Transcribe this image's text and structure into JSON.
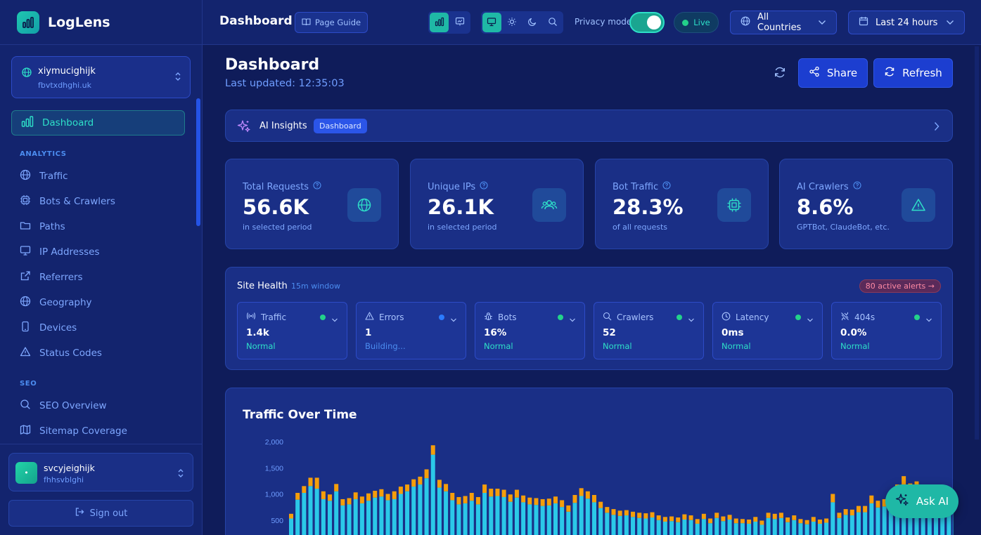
{
  "app": {
    "name": "LogLens"
  },
  "site": {
    "name": "xiymucighijk",
    "domain": "fbvtxdhghi.uk"
  },
  "sidebar": {
    "active_item": "Dashboard",
    "sections": [
      {
        "title": "ANALYTICS",
        "items": [
          "Traffic",
          "Bots & Crawlers",
          "Paths",
          "IP Addresses",
          "Referrers",
          "Geography",
          "Devices",
          "Status Codes"
        ]
      },
      {
        "title": "SEO",
        "items": [
          "SEO Overview",
          "Sitemap Coverage"
        ]
      }
    ]
  },
  "user": {
    "name": "svcyjeighijk",
    "sub": "fhhsvblghi",
    "avatar": "•"
  },
  "signout_label": "Sign out",
  "topbar": {
    "title": "Dashboard",
    "guide_label": "Page Guide",
    "privacy_label": "Privacy mode",
    "privacy_on": true,
    "live_label": "Live",
    "country_label": "All Countries",
    "range_label": "Last 24 hours"
  },
  "page": {
    "title": "Dashboard",
    "updated": "Last updated: 12:35:03",
    "share_label": "Share",
    "refresh_label": "Refresh"
  },
  "ai_insights": {
    "title": "AI Insights",
    "badge": "Dashboard"
  },
  "stats": [
    {
      "label": "Total Requests",
      "value": "56.6K",
      "sub": "in selected period",
      "icon": "globe-icon"
    },
    {
      "label": "Unique IPs",
      "value": "26.1K",
      "sub": "in selected period",
      "icon": "users-icon"
    },
    {
      "label": "Bot Traffic",
      "value": "28.3%",
      "sub": "of all requests",
      "icon": "cpu-icon"
    },
    {
      "label": "AI Crawlers",
      "value": "8.6%",
      "sub": "GPTBot, ClaudeBot, etc.",
      "icon": "warning-icon"
    }
  ],
  "health": {
    "title": "Site Health",
    "window": "15m window",
    "alerts": "80 active alerts →",
    "cards": [
      {
        "label": "Traffic",
        "value": "1.4k",
        "status": "Normal",
        "dot": "#23d28a",
        "icon": "radio-icon"
      },
      {
        "label": "Errors",
        "value": "1",
        "status": "Building...",
        "dot": "#2b7bff",
        "icon": "warning-icon"
      },
      {
        "label": "Bots",
        "value": "16%",
        "status": "Normal",
        "dot": "#23d28a",
        "icon": "bug-icon"
      },
      {
        "label": "Crawlers",
        "value": "52",
        "status": "Normal",
        "dot": "#23d28a",
        "icon": "search-icon"
      },
      {
        "label": "Latency",
        "value": "0ms",
        "status": "Normal",
        "dot": "#23d28a",
        "icon": "clock-icon"
      },
      {
        "label": "404s",
        "value": "0.0%",
        "status": "Normal",
        "dot": "#23d28a",
        "icon": "link-broken-icon"
      }
    ]
  },
  "ask_ai_label": "Ask AI",
  "colors": {
    "teal": "#1fb8a6",
    "cyan_series": "#2bc8e8",
    "orange_series": "#f59e0b",
    "accent_blue": "#1c3ed0"
  },
  "chart_data": {
    "type": "bar",
    "title": "Traffic Over Time",
    "ylim": [
      0,
      2000
    ],
    "yticks": [
      "2,000",
      "1,500",
      "1,000",
      "500"
    ],
    "series": [
      {
        "values": [
          530,
          890,
          1020,
          1150,
          1100,
          900,
          870,
          1050,
          780,
          800,
          900,
          820,
          870,
          930,
          950,
          880,
          900,
          1000,
          1050,
          1140,
          1180,
          1300,
          1750,
          1120,
          1050,
          880,
          800,
          820,
          870,
          800,
          1020,
          950,
          960,
          940,
          850,
          930,
          840,
          800,
          790,
          770,
          780,
          820,
          750,
          660,
          830,
          960,
          910,
          840,
          730,
          640,
          600,
          580,
          590,
          560,
          540,
          530,
          550,
          500,
          470,
          480,
          460,
          510,
          500,
          430,
          520,
          440,
          540,
          480,
          510,
          440,
          440,
          430,
          470,
          410,
          540,
          520,
          540,
          460,
          500,
          440,
          420,
          470,
          430,
          450,
          840,
          540,
          600,
          590,
          650,
          650,
          820,
          740,
          760,
          800,
          1000,
          1140,
          1020,
          1060,
          990,
          980,
          930,
          790,
          780,
          860
        ]
      },
      {
        "values": [
          90,
          130,
          130,
          160,
          210,
          150,
          120,
          140,
          120,
          120,
          130,
          130,
          140,
          130,
          140,
          120,
          150,
          140,
          130,
          140,
          150,
          170,
          180,
          150,
          140,
          140,
          140,
          140,
          150,
          140,
          160,
          150,
          140,
          140,
          140,
          150,
          130,
          130,
          130,
          130,
          130,
          130,
          130,
          120,
          150,
          150,
          140,
          140,
          120,
          110,
          110,
          100,
          100,
          100,
          100,
          100,
          100,
          90,
          90,
          90,
          90,
          100,
          90,
          90,
          100,
          90,
          100,
          90,
          90,
          90,
          80,
          80,
          90,
          80,
          100,
          100,
          100,
          90,
          90,
          80,
          80,
          90,
          80,
          80,
          160,
          100,
          110,
          110,
          120,
          120,
          150,
          130,
          140,
          140,
          180,
          200,
          180,
          180,
          170,
          170,
          160,
          140,
          140,
          150
        ]
      }
    ]
  }
}
